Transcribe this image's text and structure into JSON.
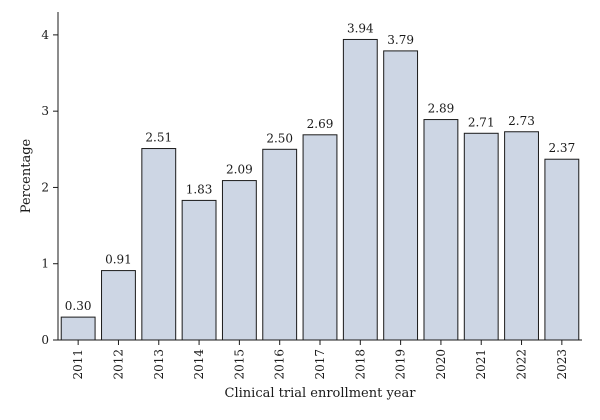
{
  "chart_data": {
    "type": "bar",
    "title": "",
    "xlabel": "Clinical trial enrollment year",
    "ylabel": "Percentage",
    "categories": [
      "2011",
      "2012",
      "2013",
      "2014",
      "2015",
      "2016",
      "2017",
      "2018",
      "2019",
      "2020",
      "2021",
      "2022",
      "2023"
    ],
    "values": [
      0.3,
      0.91,
      2.51,
      1.83,
      2.09,
      2.5,
      2.69,
      3.94,
      3.79,
      2.89,
      2.71,
      2.73,
      2.37
    ],
    "data_labels": [
      "0.30",
      "0.91",
      "2.51",
      "1.83",
      "2.09",
      "2.50",
      "2.69",
      "3.94",
      "3.79",
      "2.89",
      "2.71",
      "2.73",
      "2.37"
    ],
    "yticks": [
      "0",
      "1",
      "2",
      "3",
      "4"
    ],
    "ylim": [
      0,
      4.3
    ],
    "grid": false,
    "legend": "none",
    "bar_color": "#cdd6e4",
    "edge_color": "#1a1a1a"
  }
}
